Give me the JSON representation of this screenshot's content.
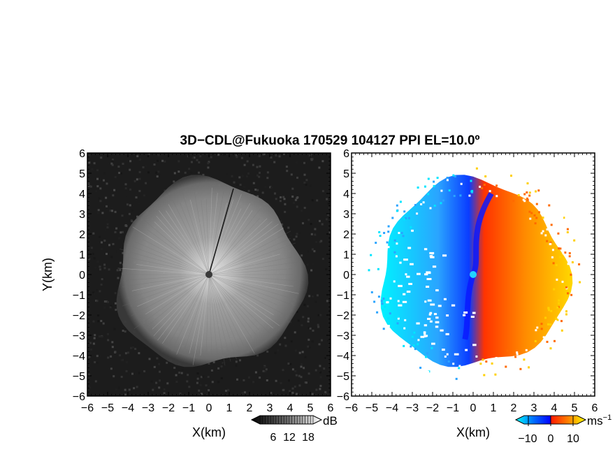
{
  "title": "3D−CDL@Fukuoka 170529 104127 PPI EL=10.0º",
  "chart_data": [
    {
      "type": "heatmap",
      "field": "backscatter intensity (gray PPI)",
      "xlabel": "X(km)",
      "ylabel": "Y(km)",
      "xlim": [
        -6,
        6
      ],
      "ylim": [
        -6,
        6
      ],
      "xticks": [
        "−6",
        "−5",
        "−4",
        "−3",
        "−2",
        "−1",
        "0",
        "1",
        "2",
        "3",
        "4",
        "5",
        "6"
      ],
      "yticks": [
        "6",
        "5",
        "4",
        "3",
        "2",
        "1",
        "0",
        "−1",
        "−2",
        "−3",
        "−4",
        "−5",
        "−6"
      ],
      "echo_radius_km": 4.6,
      "radar_center_km": [
        0,
        0
      ],
      "colorbar": {
        "unit": "dB",
        "ticks": [
          "6",
          "12",
          "18"
        ],
        "colors": [
          "#000000",
          "#3a3a3a",
          "#7a7a7a",
          "#bdbdbd",
          "#ffffff"
        ]
      }
    },
    {
      "type": "heatmap",
      "field": "radial (Doppler) velocity",
      "xlabel": "X(km)",
      "ylabel": "",
      "xlim": [
        -6,
        6
      ],
      "ylim": [
        -6,
        6
      ],
      "xticks": [
        "−6",
        "−5",
        "−4",
        "−3",
        "−2",
        "−1",
        "0",
        "1",
        "2",
        "3",
        "4",
        "5",
        "6"
      ],
      "yticks": [
        "6",
        "5",
        "4",
        "3",
        "2",
        "1",
        "0",
        "−1",
        "−2",
        "−3",
        "−4",
        "−5",
        "−6"
      ],
      "echo_radius_km": 4.6,
      "colorbar": {
        "unit": "ms",
        "unit_exp": "−1",
        "ticks": [
          "−10",
          "0",
          "10"
        ],
        "colors": [
          "#00ffff",
          "#0060ff",
          "#0000ff",
          "#ff2000",
          "#ff8000",
          "#ffff00"
        ]
      },
      "colors": {
        "approaching": "#1050ff",
        "receding": "#ff3c00",
        "far_approaching": "#00e5ff",
        "far_receding": "#ffd000"
      }
    }
  ]
}
